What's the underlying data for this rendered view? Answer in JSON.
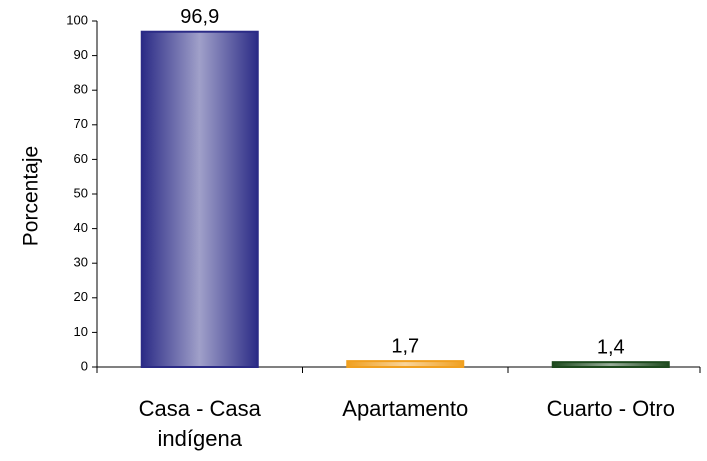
{
  "chart_data": {
    "type": "bar",
    "y_label": "Porcentaje",
    "categories": [
      "Casa - Casa indígena",
      "Apartamento",
      "Cuarto - Otro"
    ],
    "values": [
      96.9,
      1.7,
      1.4
    ],
    "value_labels": [
      "96,9",
      "1,7",
      "1,4"
    ],
    "colors": [
      "#2b2b86",
      "#f0a020",
      "#1e4a1e"
    ],
    "ylim": [
      0,
      100
    ],
    "yticks": [
      0,
      10,
      20,
      30,
      40,
      50,
      60,
      70,
      80,
      90,
      100
    ],
    "grid": false
  }
}
